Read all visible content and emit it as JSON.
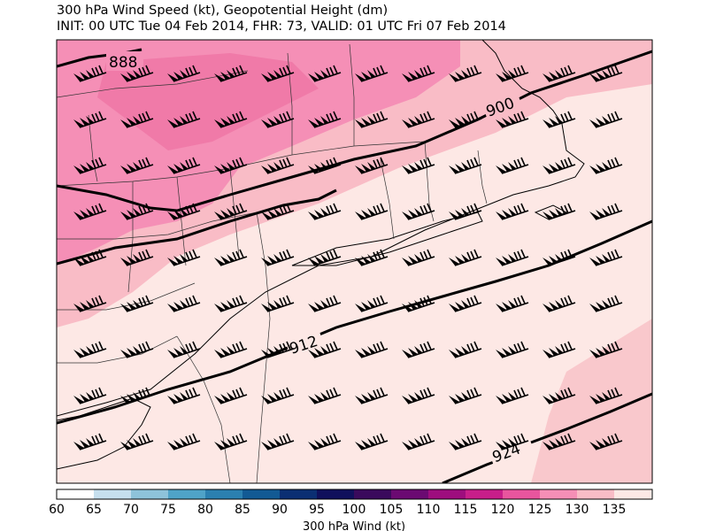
{
  "title": {
    "line1": "300 hPa Wind Speed (kt), Geopotential Height (dm)",
    "line2": "INIT: 00 UTC Tue 04 Feb 2014, FHR: 73, VALID: 01 UTC Fri 07 Feb 2014"
  },
  "map": {
    "variable": "300 hPa wind speed (kt)",
    "contour_labels": [
      "888",
      "900",
      "912",
      "924"
    ],
    "wind_barb_direction": "from the west-southwest",
    "wind_barb_speed_range_kt": [
      85,
      125
    ]
  },
  "colorbar": {
    "label": "300 hPa Wind (kt)",
    "ticks": [
      "60",
      "65",
      "70",
      "75",
      "80",
      "85",
      "90",
      "95",
      "100",
      "105",
      "110",
      "115",
      "120",
      "125",
      "130",
      "135"
    ],
    "colors": [
      "#ffffff",
      "#c6dfee",
      "#8ec3da",
      "#4fa3c8",
      "#2b80b0",
      "#125a94",
      "#0b2f73",
      "#10105c",
      "#3a0a5c",
      "#6b0a72",
      "#9e0d7e",
      "#c81e8a",
      "#e8559e",
      "#f58fb6",
      "#f9bcc6",
      "#fde8e5",
      "#ffffff"
    ]
  }
}
